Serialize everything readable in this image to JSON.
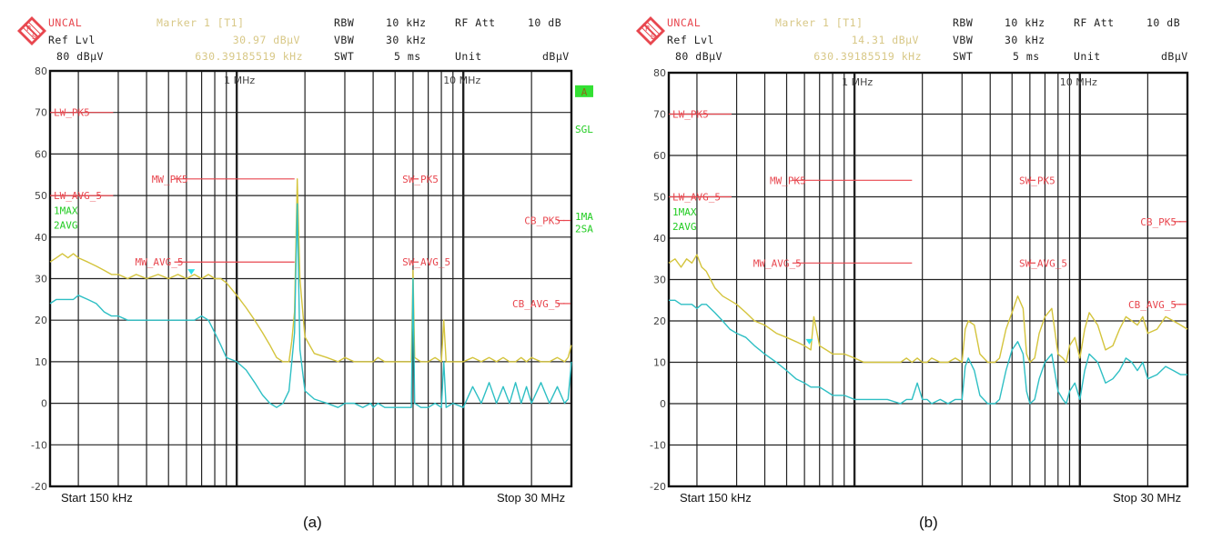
{
  "chart_data": [
    {
      "type": "line",
      "panel": "a",
      "caption": "(a)",
      "title": "",
      "header": {
        "status": "UNCAL",
        "ref_lvl_label": "Ref Lvl",
        "ref_lvl_value": "80 dBµV",
        "marker_label": "Marker 1 [T1]",
        "marker_level": "30.97 dBµV",
        "marker_freq": "630.39185519 kHz",
        "rbw_label": "RBW",
        "rbw_value": "10 kHz",
        "vbw_label": "VBW",
        "vbw_value": "30 kHz",
        "swt_label": "SWT",
        "swt_value": "5 ms",
        "rfatt_label": "RF Att",
        "rfatt_value": "10 dB",
        "unit_label": "Unit",
        "unit_value": "dBµV"
      },
      "xscale": "log",
      "xlim_hz": [
        150000,
        30000000
      ],
      "x_start_label": "Start 150 kHz",
      "x_stop_label": "Stop 30 MHz",
      "x_decade_labels": [
        "1 MHz",
        "10 MHz"
      ],
      "ylim": [
        -20,
        80
      ],
      "yticks": [
        80,
        70,
        60,
        50,
        40,
        30,
        20,
        10,
        0,
        -10,
        -20
      ],
      "ylabel": "dBµV",
      "grid": true,
      "side_annotations": [
        {
          "text": "A",
          "y_db": 75,
          "boxed": true
        },
        {
          "text": "SGL",
          "y_db": 66
        },
        {
          "text": "1MA",
          "y_db": 45
        },
        {
          "text": "2SA",
          "y_db": 42
        }
      ],
      "trace_annotations": [
        "1MAX",
        "2AVG"
      ],
      "limit_lines": [
        {
          "label": "LW_PK5",
          "level_db": 70,
          "f_start_hz": 150000,
          "f_end_hz": 285000
        },
        {
          "label": "LW_AVG_5",
          "level_db": 50,
          "f_start_hz": 150000,
          "f_end_hz": 285000
        },
        {
          "label": "MW_PK5",
          "level_db": 54,
          "f_start_hz": 530000,
          "f_end_hz": 1800000
        },
        {
          "label": "MW_AVG_5",
          "level_db": 34,
          "f_start_hz": 530000,
          "f_end_hz": 1800000
        },
        {
          "label": "SW_PK5",
          "level_db": 54,
          "f_start_hz": 5900000,
          "f_end_hz": 6200000
        },
        {
          "label": "SW_AVG_5",
          "level_db": 34,
          "f_start_hz": 5900000,
          "f_end_hz": 6200000
        },
        {
          "label": "CB_PK5",
          "level_db": 44,
          "f_start_hz": 26000000,
          "f_end_hz": 28000000
        },
        {
          "label": "CB_AVG_5",
          "level_db": 24,
          "f_start_hz": 26000000,
          "f_end_hz": 28000000
        }
      ],
      "marker": {
        "freq_hz": 630391.85519,
        "level_db": 30.97
      },
      "series": [
        {
          "name": "1MAX (peak)",
          "color": "#d4c43c",
          "x_hz": [
            150000,
            160000,
            170000,
            180000,
            190000,
            200000,
            220000,
            240000,
            260000,
            280000,
            300000,
            330000,
            360000,
            400000,
            450000,
            500000,
            550000,
            600000,
            650000,
            700000,
            750000,
            800000,
            850000,
            900000,
            1000000,
            1100000,
            1200000,
            1300000,
            1400000,
            1500000,
            1600000,
            1700000,
            1750000,
            1800000,
            1850000,
            1900000,
            2000000,
            2200000,
            2500000,
            2800000,
            3000000,
            3300000,
            3600000,
            3900000,
            4000000,
            4200000,
            4500000,
            5000000,
            5500000,
            5900000,
            6000000,
            6100000,
            6500000,
            7000000,
            7500000,
            8000000,
            8200000,
            8400000,
            9000000,
            10000000,
            11000000,
            12000000,
            13000000,
            14000000,
            15000000,
            16000000,
            17000000,
            18000000,
            19000000,
            20000000,
            22000000,
            24000000,
            26000000,
            28000000,
            29000000,
            30000000
          ],
          "values": [
            34,
            35,
            36,
            35,
            36,
            35,
            34,
            33,
            32,
            31,
            31,
            30,
            31,
            30,
            31,
            30,
            31,
            30,
            31,
            30,
            31,
            30,
            30,
            29,
            26,
            23,
            20,
            17,
            14,
            11,
            10,
            10,
            15,
            22,
            54,
            30,
            16,
            12,
            11,
            10,
            11,
            10,
            10,
            10,
            10,
            11,
            10,
            10,
            10,
            10,
            32,
            11,
            10,
            10,
            11,
            10,
            20,
            10,
            10,
            10,
            11,
            10,
            11,
            10,
            11,
            10,
            10,
            11,
            10,
            11,
            10,
            10,
            11,
            10,
            11,
            14
          ]
        },
        {
          "name": "2AVG (average)",
          "color": "#2ebfc4",
          "x_hz": [
            150000,
            160000,
            170000,
            180000,
            190000,
            200000,
            220000,
            240000,
            260000,
            280000,
            300000,
            330000,
            360000,
            400000,
            450000,
            500000,
            550000,
            600000,
            650000,
            700000,
            750000,
            800000,
            850000,
            900000,
            1000000,
            1100000,
            1200000,
            1300000,
            1400000,
            1500000,
            1600000,
            1700000,
            1750000,
            1800000,
            1850000,
            1900000,
            2000000,
            2200000,
            2500000,
            2800000,
            3000000,
            3300000,
            3600000,
            3900000,
            4000000,
            4200000,
            4500000,
            5000000,
            5500000,
            5900000,
            6000000,
            6100000,
            6500000,
            7000000,
            7500000,
            8000000,
            8200000,
            8400000,
            9000000,
            10000000,
            11000000,
            12000000,
            13000000,
            14000000,
            15000000,
            16000000,
            17000000,
            18000000,
            19000000,
            20000000,
            22000000,
            24000000,
            26000000,
            28000000,
            29000000,
            30000000
          ],
          "values": [
            24,
            25,
            25,
            25,
            25,
            26,
            25,
            24,
            22,
            21,
            21,
            20,
            20,
            20,
            20,
            20,
            20,
            20,
            20,
            21,
            20,
            17,
            14,
            11,
            10,
            8,
            5,
            2,
            0,
            -1,
            0,
            3,
            10,
            17,
            48,
            13,
            3,
            1,
            0,
            -1,
            0,
            0,
            -1,
            0,
            -1,
            0,
            -1,
            -1,
            -1,
            -1,
            30,
            0,
            -1,
            -1,
            0,
            -1,
            10,
            -1,
            0,
            -1,
            4,
            0,
            5,
            0,
            4,
            0,
            5,
            0,
            4,
            0,
            5,
            0,
            4,
            0,
            1,
            10
          ]
        }
      ]
    },
    {
      "type": "line",
      "panel": "b",
      "caption": "(b)",
      "title": "",
      "header": {
        "status": "UNCAL",
        "ref_lvl_label": "Ref Lvl",
        "ref_lvl_value": "80 dBµV",
        "marker_label": "Marker 1 [T1]",
        "marker_level": "14.31 dBµV",
        "marker_freq": "630.39185519 kHz",
        "rbw_label": "RBW",
        "rbw_value": "10 kHz",
        "vbw_label": "VBW",
        "vbw_value": "30 kHz",
        "swt_label": "SWT",
        "swt_value": "5 ms",
        "rfatt_label": "RF Att",
        "rfatt_value": "10 dB",
        "unit_label": "Unit",
        "unit_value": "dBµV"
      },
      "xscale": "log",
      "xlim_hz": [
        150000,
        30000000
      ],
      "x_start_label": "Start 150 kHz",
      "x_stop_label": "Stop 30 MHz",
      "x_decade_labels": [
        "1 MHz",
        "10 MHz"
      ],
      "ylim": [
        -20,
        80
      ],
      "yticks": [
        80,
        70,
        60,
        50,
        40,
        30,
        20,
        10,
        0,
        -10,
        -20
      ],
      "ylabel": "dBµV",
      "grid": true,
      "side_annotations": [],
      "trace_annotations": [
        "1MAX",
        "2AVG"
      ],
      "limit_lines": [
        {
          "label": "LW_PK5",
          "level_db": 70,
          "f_start_hz": 150000,
          "f_end_hz": 285000
        },
        {
          "label": "LW_AVG_5",
          "level_db": 50,
          "f_start_hz": 150000,
          "f_end_hz": 285000
        },
        {
          "label": "MW_PK5",
          "level_db": 54,
          "f_start_hz": 530000,
          "f_end_hz": 1800000
        },
        {
          "label": "MW_AVG_5",
          "level_db": 34,
          "f_start_hz": 530000,
          "f_end_hz": 1800000
        },
        {
          "label": "SW_PK5",
          "level_db": 54,
          "f_start_hz": 5900000,
          "f_end_hz": 6200000
        },
        {
          "label": "SW_AVG_5",
          "level_db": 34,
          "f_start_hz": 5900000,
          "f_end_hz": 6200000
        },
        {
          "label": "CB_PK5",
          "level_db": 44,
          "f_start_hz": 26000000,
          "f_end_hz": 28000000
        },
        {
          "label": "CB_AVG_5",
          "level_db": 24,
          "f_start_hz": 26000000,
          "f_end_hz": 28000000
        }
      ],
      "marker": {
        "freq_hz": 630391.85519,
        "level_db": 14.31
      },
      "series": [
        {
          "name": "1MAX (peak)",
          "color": "#d4c43c",
          "x_hz": [
            150000,
            160000,
            170000,
            180000,
            190000,
            200000,
            210000,
            220000,
            240000,
            260000,
            280000,
            300000,
            330000,
            360000,
            400000,
            450000,
            500000,
            550000,
            600000,
            640000,
            660000,
            700000,
            750000,
            800000,
            900000,
            1000000,
            1100000,
            1200000,
            1400000,
            1600000,
            1700000,
            1800000,
            1900000,
            2000000,
            2100000,
            2200000,
            2400000,
            2600000,
            2800000,
            3000000,
            3100000,
            3200000,
            3400000,
            3600000,
            3900000,
            4000000,
            4100000,
            4200000,
            4400000,
            4700000,
            5000000,
            5300000,
            5600000,
            5800000,
            6000000,
            6300000,
            6600000,
            7000000,
            7500000,
            8000000,
            8400000,
            8700000,
            9000000,
            9500000,
            10000000,
            10500000,
            11000000,
            12000000,
            13000000,
            14000000,
            15000000,
            16000000,
            17000000,
            18000000,
            19000000,
            20000000,
            22000000,
            24000000,
            26000000,
            28000000,
            30000000
          ],
          "values": [
            34,
            35,
            33,
            35,
            34,
            36,
            33,
            32,
            28,
            26,
            25,
            24,
            22,
            20,
            19,
            17,
            16,
            15,
            14,
            13,
            21,
            14,
            13,
            12,
            12,
            11,
            10,
            10,
            10,
            10,
            11,
            10,
            11,
            10,
            10,
            11,
            10,
            10,
            11,
            10,
            18,
            20,
            19,
            12,
            10,
            10,
            10,
            10,
            11,
            18,
            22,
            26,
            23,
            12,
            10,
            11,
            17,
            21,
            23,
            12,
            11,
            10,
            14,
            16,
            11,
            18,
            22,
            19,
            13,
            14,
            18,
            21,
            20,
            19,
            21,
            17,
            18,
            21,
            20,
            19,
            18
          ]
        },
        {
          "name": "2AVG (average)",
          "color": "#2ebfc4",
          "x_hz": [
            150000,
            160000,
            170000,
            180000,
            190000,
            200000,
            210000,
            220000,
            240000,
            260000,
            280000,
            300000,
            330000,
            360000,
            400000,
            450000,
            500000,
            550000,
            600000,
            640000,
            660000,
            700000,
            750000,
            800000,
            900000,
            1000000,
            1100000,
            1200000,
            1400000,
            1600000,
            1700000,
            1800000,
            1900000,
            2000000,
            2100000,
            2200000,
            2400000,
            2600000,
            2800000,
            3000000,
            3100000,
            3200000,
            3400000,
            3600000,
            3900000,
            4000000,
            4100000,
            4200000,
            4400000,
            4700000,
            5000000,
            5300000,
            5600000,
            5800000,
            6000000,
            6300000,
            6600000,
            7000000,
            7500000,
            8000000,
            8400000,
            8700000,
            9000000,
            9500000,
            10000000,
            10500000,
            11000000,
            12000000,
            13000000,
            14000000,
            15000000,
            16000000,
            17000000,
            18000000,
            19000000,
            20000000,
            22000000,
            24000000,
            26000000,
            28000000,
            30000000
          ],
          "values": [
            25,
            25,
            24,
            24,
            24,
            23,
            24,
            24,
            22,
            20,
            18,
            17,
            16,
            14,
            12,
            10,
            8,
            6,
            5,
            4,
            4,
            4,
            3,
            2,
            2,
            1,
            1,
            1,
            1,
            0,
            1,
            1,
            5,
            1,
            1,
            0,
            1,
            0,
            1,
            1,
            9,
            11,
            8,
            2,
            0,
            0,
            0,
            0,
            1,
            8,
            13,
            15,
            12,
            3,
            0,
            1,
            6,
            10,
            12,
            3,
            1,
            0,
            3,
            5,
            1,
            8,
            12,
            10,
            5,
            6,
            8,
            11,
            10,
            8,
            10,
            6,
            7,
            9,
            8,
            7,
            7
          ]
        }
      ]
    }
  ]
}
